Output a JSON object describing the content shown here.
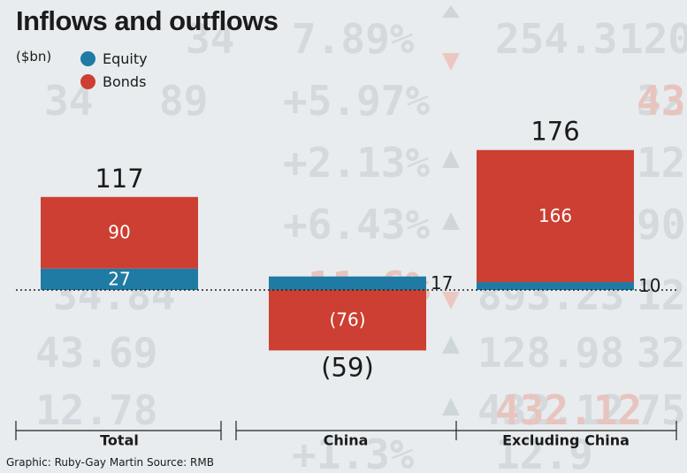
{
  "header": {
    "title": "Inflows and outflows",
    "unit": "($bn)"
  },
  "colors": {
    "equity": "#1f7ba3",
    "bonds": "#cc3f32",
    "text": "#1b1b1b"
  },
  "chart_data": {
    "type": "bar",
    "stacked": true,
    "title": "Inflows and outflows",
    "ylabel": "($bn)",
    "categories": [
      "Total",
      "China",
      "Excluding China"
    ],
    "series": [
      {
        "name": "Equity",
        "values": [
          27,
          17,
          10
        ],
        "labels": [
          "27",
          "17",
          "10"
        ]
      },
      {
        "name": "Bonds",
        "values": [
          90,
          -76,
          166
        ],
        "labels": [
          "90",
          "(76)",
          "166"
        ]
      }
    ],
    "totals": [
      117,
      -59,
      176
    ],
    "total_labels": [
      "117",
      "(59)",
      "176"
    ],
    "legend": "top-left",
    "baseline_style": "dotted"
  },
  "footer": {
    "credit": "Graphic: Ruby-Gay Martin  Source: RMB"
  }
}
